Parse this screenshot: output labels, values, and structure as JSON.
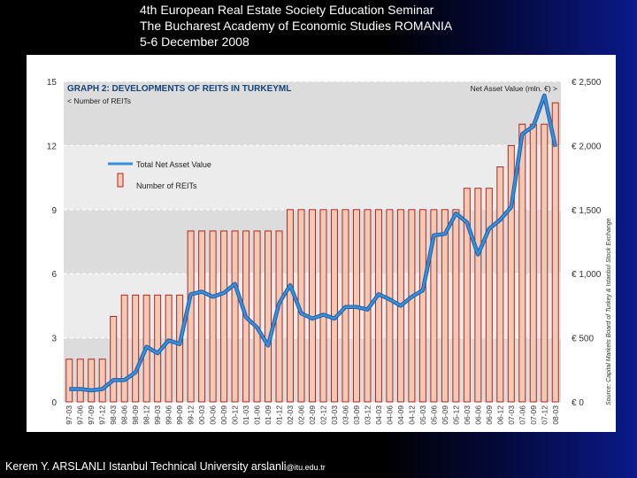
{
  "header": {
    "line1": "4th European Real Estate Society Education Seminar",
    "line2": "The Bucharest Academy of Economic Studies ROMANIA",
    "line3": "5-6 December 2008"
  },
  "footer": {
    "author": "Kerem Y. ARSLANLI Istanbul Technical University arslanli",
    "email": "@itu.edu.tr"
  },
  "colors": {
    "bar_fill": "#f2c9b4",
    "bar_stroke": "#b3261e",
    "line": "#3a8fd8",
    "plot_bg": "#dcdcdc",
    "title": "#14447a"
  },
  "chart_data": {
    "type": "bar+line",
    "title": "GRAPH 2: DEVELOPMENTS OF REITS IN TURKEYML",
    "left_axis_label": "< Number of REITs",
    "right_axis_label": "Net Asset Value (mln. €) >",
    "source": "Source: Capital Markets Board of Turkey & Istanbul Stock Exchange",
    "legend": [
      {
        "label": "Total Net Asset Value",
        "kind": "line"
      },
      {
        "label": "Number of REITs",
        "kind": "bar"
      }
    ],
    "left_ticks": [
      "0",
      "3",
      "6",
      "9",
      "12",
      "15"
    ],
    "left_ylim": [
      0,
      15
    ],
    "right_ticks": [
      "€ 0",
      "€ 500",
      "€ 1,000",
      "€ 1,500",
      "€ 2,000",
      "€ 2,500"
    ],
    "right_ylim": [
      0,
      2500
    ],
    "categories": [
      "97-03",
      "97-06",
      "97-09",
      "97-12",
      "98-03",
      "98-06",
      "98-09",
      "98-12",
      "99-03",
      "99-06",
      "99-09",
      "99-12",
      "00-03",
      "00-06",
      "00-09",
      "00-12",
      "01-03",
      "01-06",
      "01-09",
      "01-12",
      "02-03",
      "02-06",
      "02-09",
      "02-12",
      "03-03",
      "03-06",
      "03-09",
      "03-12",
      "04-03",
      "04-06",
      "04-09",
      "04-12",
      "05-03",
      "05-06",
      "05-09",
      "05-12",
      "06-03",
      "06-06",
      "06-09",
      "06-12",
      "07-03",
      "07-06",
      "07-09",
      "07-12",
      "08-03"
    ],
    "series": [
      {
        "name": "Number of REITs",
        "axis": "left",
        "type": "bar",
        "values": [
          2,
          2,
          2,
          2,
          4,
          5,
          5,
          5,
          5,
          5,
          5,
          8,
          8,
          8,
          8,
          8,
          8,
          8,
          8,
          8,
          9,
          9,
          9,
          9,
          9,
          9,
          9,
          9,
          9,
          9,
          9,
          9,
          9,
          9,
          9,
          9,
          10,
          10,
          10,
          11,
          12,
          13,
          13,
          13,
          14
        ]
      },
      {
        "name": "Total Net Asset Value",
        "axis": "right",
        "type": "line",
        "values": [
          100,
          100,
          90,
          100,
          170,
          170,
          230,
          430,
          380,
          480,
          450,
          840,
          860,
          820,
          850,
          920,
          660,
          580,
          440,
          770,
          910,
          690,
          650,
          680,
          650,
          740,
          740,
          720,
          840,
          800,
          750,
          820,
          870,
          1300,
          1310,
          1470,
          1400,
          1150,
          1350,
          1420,
          1520,
          2090,
          2150,
          2390,
          1990
        ]
      }
    ]
  }
}
